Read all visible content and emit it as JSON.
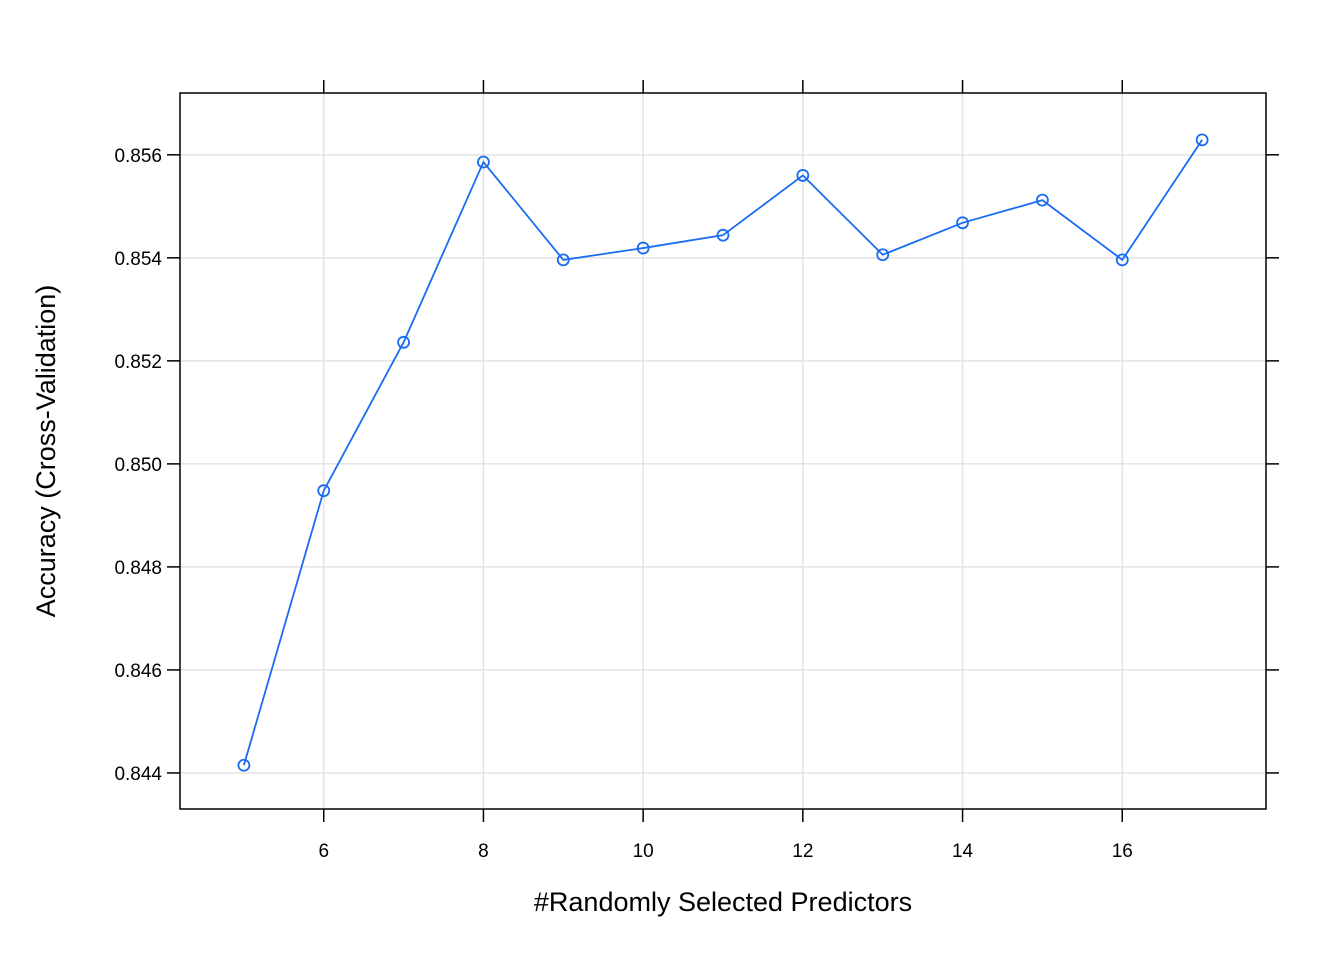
{
  "chart_data": {
    "type": "line",
    "title": "",
    "xlabel": "#Randomly Selected Predictors",
    "ylabel": "Accuracy (Cross-Validation)",
    "xlim": [
      4.2,
      17.8
    ],
    "ylim": [
      0.8433,
      0.8572
    ],
    "x_ticks": [
      6,
      8,
      10,
      12,
      14,
      16
    ],
    "x_tick_labels": [
      "6",
      "8",
      "10",
      "12",
      "14",
      "16"
    ],
    "y_ticks": [
      0.844,
      0.846,
      0.848,
      0.85,
      0.852,
      0.854,
      0.856
    ],
    "y_tick_labels": [
      "0.844",
      "0.846",
      "0.848",
      "0.850",
      "0.852",
      "0.854",
      "0.856"
    ],
    "grid": true,
    "marker": "open-circle",
    "series": [
      {
        "color": "#1a6cf0",
        "x": [
          5,
          6,
          7,
          8,
          9,
          10,
          11,
          12,
          13,
          14,
          15,
          16,
          17
        ],
        "values": [
          0.84415,
          0.84948,
          0.85236,
          0.85586,
          0.85396,
          0.85419,
          0.85444,
          0.8556,
          0.85406,
          0.85468,
          0.85512,
          0.85396,
          0.85629
        ]
      }
    ]
  },
  "colors": {
    "grid": "#e3e3e3",
    "axis": "#000000",
    "series": "#1a6cf0"
  }
}
